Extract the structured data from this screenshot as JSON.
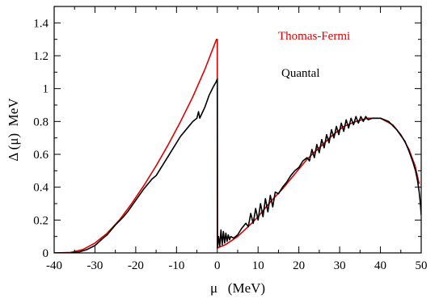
{
  "chart_data": {
    "type": "line",
    "xlabel": "μ   (MeV)",
    "ylabel": "Δ (μ)  MeV",
    "xlim": [
      -40,
      50
    ],
    "ylim": [
      0,
      1.5
    ],
    "x_ticks": [
      -40,
      -30,
      -20,
      -10,
      0,
      10,
      20,
      30,
      40,
      50
    ],
    "x_tick_labels": [
      "-40",
      "-30",
      "-20",
      "-10",
      "0",
      "10",
      "20",
      "30",
      "40",
      "50"
    ],
    "y_ticks": [
      0,
      0.2,
      0.4,
      0.6,
      0.8,
      1.0,
      1.2,
      1.4
    ],
    "y_tick_labels": [
      "0",
      "0.2",
      "0.4",
      "0.6",
      "0.8",
      "1",
      "1.2",
      "1.4"
    ],
    "grid": false,
    "legend_placement": "top-right",
    "series": [
      {
        "name": "Thomas-Fermi",
        "color": "#dd0000",
        "points": [
          [
            -40,
            0.0
          ],
          [
            -36,
            0.003
          ],
          [
            -33,
            0.02
          ],
          [
            -30,
            0.06
          ],
          [
            -27,
            0.12
          ],
          [
            -24,
            0.2
          ],
          [
            -21,
            0.3
          ],
          [
            -18,
            0.41
          ],
          [
            -15,
            0.53
          ],
          [
            -12,
            0.66
          ],
          [
            -9,
            0.8
          ],
          [
            -6,
            0.95
          ],
          [
            -3,
            1.12
          ],
          [
            -0.2,
            1.3
          ],
          [
            0,
            1.3
          ],
          [
            0,
            0.03
          ],
          [
            2,
            0.05
          ],
          [
            5,
            0.1
          ],
          [
            8,
            0.17
          ],
          [
            10,
            0.22
          ],
          [
            13,
            0.31
          ],
          [
            16,
            0.39
          ],
          [
            19,
            0.48
          ],
          [
            22,
            0.57
          ],
          [
            25,
            0.64
          ],
          [
            28,
            0.71
          ],
          [
            31,
            0.77
          ],
          [
            34,
            0.8
          ],
          [
            37,
            0.82
          ],
          [
            40,
            0.82
          ],
          [
            43,
            0.78
          ],
          [
            45,
            0.72
          ],
          [
            47,
            0.63
          ],
          [
            48.5,
            0.53
          ],
          [
            49.5,
            0.42
          ]
        ]
      },
      {
        "name": "Quantal",
        "color": "#000000",
        "points": [
          [
            -40,
            0.0
          ],
          [
            -36,
            0.0
          ],
          [
            -34,
            0.005
          ],
          [
            -32,
            0.02
          ],
          [
            -30,
            0.045
          ],
          [
            -28,
            0.09
          ],
          [
            -27,
            0.11
          ],
          [
            -25,
            0.17
          ],
          [
            -23,
            0.22
          ],
          [
            -22,
            0.25
          ],
          [
            -20,
            0.32
          ],
          [
            -18,
            0.39
          ],
          [
            -16,
            0.45
          ],
          [
            -15,
            0.47
          ],
          [
            -13,
            0.55
          ],
          [
            -11,
            0.63
          ],
          [
            -9,
            0.71
          ],
          [
            -7,
            0.77
          ],
          [
            -6,
            0.8
          ],
          [
            -5,
            0.82
          ],
          [
            -4.6,
            0.86
          ],
          [
            -4.3,
            0.82
          ],
          [
            -3,
            0.89
          ],
          [
            -2,
            0.96
          ],
          [
            -1,
            1.01
          ],
          [
            -0.3,
            1.04
          ],
          [
            0,
            1.06
          ],
          [
            0.05,
            0.03
          ],
          [
            0.3,
            0.1
          ],
          [
            0.6,
            0.04
          ],
          [
            0.9,
            0.14
          ],
          [
            1.2,
            0.05
          ],
          [
            1.5,
            0.13
          ],
          [
            1.8,
            0.06
          ],
          [
            2.1,
            0.12
          ],
          [
            2.4,
            0.07
          ],
          [
            2.7,
            0.11
          ],
          [
            3.0,
            0.08
          ],
          [
            3.3,
            0.1
          ],
          [
            4,
            0.09
          ],
          [
            5,
            0.11
          ],
          [
            6,
            0.15
          ],
          [
            7,
            0.18
          ],
          [
            7.6,
            0.16
          ],
          [
            8.2,
            0.24
          ],
          [
            8.8,
            0.18
          ],
          [
            9.4,
            0.27
          ],
          [
            10.0,
            0.2
          ],
          [
            10.6,
            0.3
          ],
          [
            11.2,
            0.22
          ],
          [
            11.8,
            0.33
          ],
          [
            12.4,
            0.25
          ],
          [
            13.0,
            0.35
          ],
          [
            13.6,
            0.28
          ],
          [
            14.2,
            0.37
          ],
          [
            15,
            0.36
          ],
          [
            16,
            0.4
          ],
          [
            17,
            0.43
          ],
          [
            18,
            0.47
          ],
          [
            19,
            0.5
          ],
          [
            20,
            0.52
          ],
          [
            21,
            0.56
          ],
          [
            22,
            0.58
          ],
          [
            22.6,
            0.56
          ],
          [
            23.2,
            0.63
          ],
          [
            23.8,
            0.58
          ],
          [
            24.4,
            0.66
          ],
          [
            25.0,
            0.61
          ],
          [
            25.6,
            0.69
          ],
          [
            26.2,
            0.64
          ],
          [
            26.8,
            0.72
          ],
          [
            27.4,
            0.67
          ],
          [
            28.0,
            0.75
          ],
          [
            28.6,
            0.7
          ],
          [
            29.2,
            0.77
          ],
          [
            29.8,
            0.72
          ],
          [
            30.4,
            0.79
          ],
          [
            31.0,
            0.74
          ],
          [
            31.6,
            0.81
          ],
          [
            32.2,
            0.76
          ],
          [
            32.8,
            0.82
          ],
          [
            33.4,
            0.78
          ],
          [
            34.0,
            0.83
          ],
          [
            34.6,
            0.79
          ],
          [
            35.2,
            0.83
          ],
          [
            35.8,
            0.8
          ],
          [
            36.4,
            0.83
          ],
          [
            37.0,
            0.81
          ],
          [
            38,
            0.82
          ],
          [
            40,
            0.82
          ],
          [
            42,
            0.8
          ],
          [
            44,
            0.75
          ],
          [
            46,
            0.68
          ],
          [
            47,
            0.62
          ],
          [
            48,
            0.55
          ],
          [
            48.6,
            0.5
          ],
          [
            49.1,
            0.44
          ],
          [
            49.5,
            0.37
          ],
          [
            49.8,
            0.3
          ],
          [
            50,
            0.23
          ]
        ]
      }
    ]
  }
}
